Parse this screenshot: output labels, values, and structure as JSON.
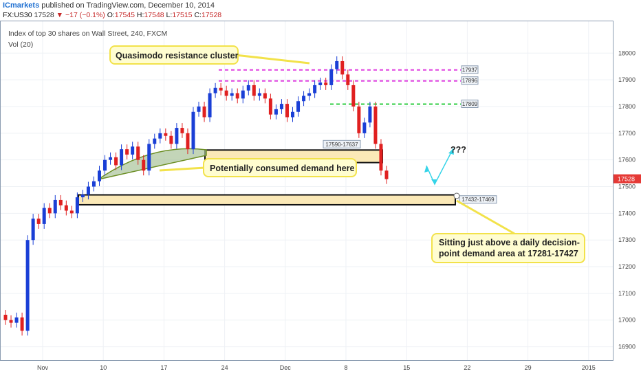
{
  "header": {
    "brand": "ICmarkets",
    "published": "published on TradingView.com, December 10, 2014",
    "symbol": "FX:US30",
    "last": "17528",
    "change_arrow": "▼",
    "change": "−17 (−0.1%)",
    "open_label": "O:",
    "open": "17545",
    "high_label": "H:",
    "high": "17548",
    "low_label": "L:",
    "low": "17515",
    "close_label": "C:",
    "close": "17528"
  },
  "chart_data": {
    "type": "candlestick",
    "title": "Index of top 30 shares on Wall Street, 240, FXCM",
    "indicator": "Vol (20)",
    "ylim": [
      16850,
      18060
    ],
    "y_ticks": [
      "16900",
      "17000",
      "17100",
      "17200",
      "17300",
      "17400",
      "17500",
      "17600",
      "17700",
      "17800",
      "17900",
      "18000"
    ],
    "x_ticks": [
      "Nov",
      "10",
      "17",
      "24",
      "Dec",
      "8",
      "15",
      "22",
      "29",
      "2015"
    ],
    "current_price": "17528",
    "levels": [
      {
        "label": "17937",
        "price": 17937,
        "style": "dashed",
        "color": "#e040e0"
      },
      {
        "label": "17896",
        "price": 17896,
        "style": "dashed",
        "color": "#e040e0"
      },
      {
        "label": "17809",
        "price": 17809,
        "style": "dashed",
        "color": "#2ecc40"
      }
    ],
    "zones": [
      {
        "label": "17590-17637",
        "low": 17590,
        "high": 17637
      },
      {
        "label": "17432-17469",
        "low": 17432,
        "high": 17469
      }
    ],
    "annotations": [
      "Quasimodo resistance cluster",
      "Potentially consumed demand here",
      "Sitting just above a daily decision-point demand area at 17281-17427",
      "???"
    ],
    "candle_closes": [
      17000,
      16990,
      17010,
      16960,
      17300,
      17380,
      17360,
      17420,
      17400,
      17450,
      17430,
      17410,
      17400,
      17460,
      17470,
      17500,
      17520,
      17560,
      17600,
      17610,
      17580,
      17640,
      17620,
      17650,
      17600,
      17560,
      17660,
      17680,
      17700,
      17690,
      17660,
      17720,
      17700,
      17640,
      17780,
      17800,
      17760,
      17850,
      17870,
      17860,
      17840,
      17850,
      17830,
      17860,
      17880,
      17840,
      17850,
      17830,
      17770,
      17790,
      17810,
      17760,
      17780,
      17820,
      17840,
      17850,
      17880,
      17890,
      17880,
      17940,
      17970,
      17920,
      17880,
      17800,
      17700,
      17740,
      17800,
      17660,
      17560,
      17528
    ],
    "candle_dates": [
      "Oct 29",
      "Oct 30",
      "Oct 31",
      "Nov 3",
      "Nov 3",
      "Nov 4",
      "Nov 4",
      "Nov 5",
      "Nov 5",
      "Nov 6",
      "Nov 6",
      "Nov 7",
      "Nov 7",
      "Nov 10",
      "Nov 10",
      "Nov 11",
      "Nov 11",
      "Nov 12",
      "Nov 12",
      "Nov 13",
      "Nov 13",
      "Nov 14",
      "Nov 14",
      "Nov 17",
      "Nov 17",
      "Nov 18",
      "Nov 18",
      "Nov 19",
      "Nov 19",
      "Nov 20",
      "Nov 20",
      "Nov 21",
      "Nov 21",
      "Nov 24",
      "Nov 24",
      "Nov 25",
      "Nov 25",
      "Nov 26",
      "Nov 26",
      "Nov 27",
      "Nov 27",
      "Nov 28",
      "Nov 28",
      "Dec 1",
      "Dec 1",
      "Dec 2",
      "Dec 2",
      "Dec 3",
      "Dec 3",
      "Dec 4",
      "Dec 4",
      "Dec 5",
      "Dec 5",
      "Dec 5",
      "Dec 8",
      "Dec 8",
      "Dec 8",
      "Dec 9",
      "Dec 9",
      "Dec 9",
      "Dec 9",
      "Dec 10",
      "Dec 10",
      "Dec 10",
      "Dec 10",
      "Dec 10",
      "Dec 10",
      "Dec 10",
      "Dec 10",
      "Dec 10"
    ]
  },
  "colors": {
    "up": "#1a3fd6",
    "down": "#e02020",
    "zone_fill": "#fbe9b7",
    "callout_fill": "#fffdd0",
    "callout_border": "#f2e24a",
    "arrow": "#35d4e8",
    "price_tag": "#e53935"
  }
}
